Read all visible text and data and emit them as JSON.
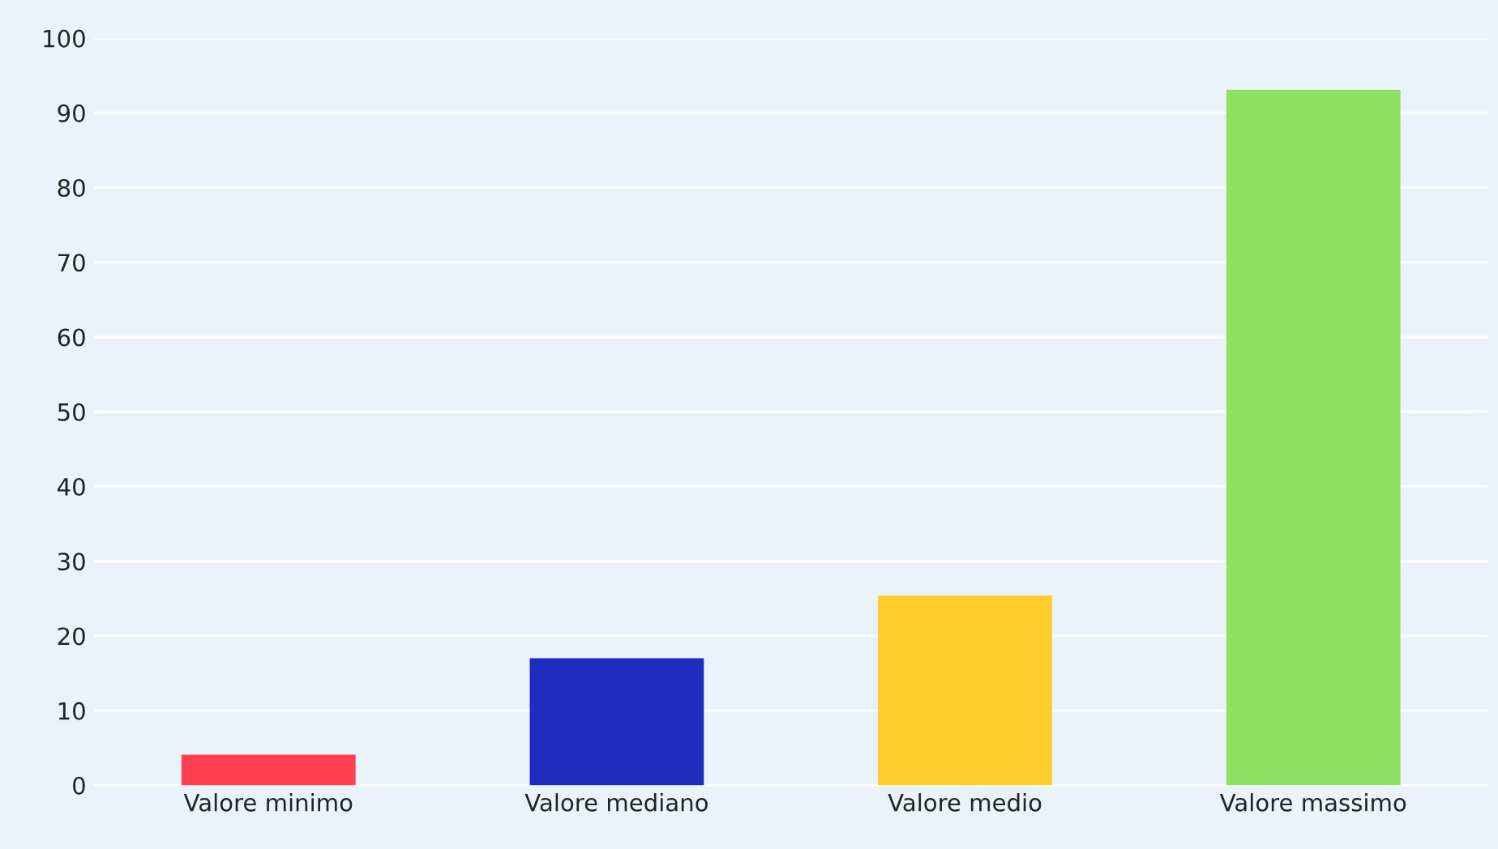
{
  "chart_data": {
    "type": "bar",
    "categories": [
      "Valore minimo",
      "Valore mediano",
      "Valore medio",
      "Valore massimo"
    ],
    "values": [
      4.1,
      17,
      25.4,
      93.1
    ],
    "colors": [
      "#ff4050",
      "#1f2dbe",
      "#ffce2e",
      "#8ee062"
    ],
    "ylim": [
      0,
      100
    ],
    "yticks": [
      0,
      10,
      20,
      30,
      40,
      50,
      60,
      70,
      80,
      90,
      100
    ],
    "grid": "y"
  }
}
